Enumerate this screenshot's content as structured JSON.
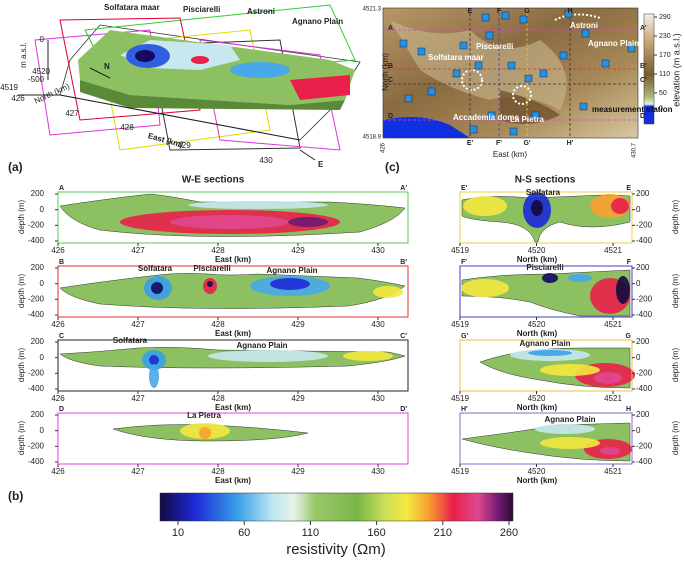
{
  "panel_labels": [
    "(a)",
    "(b)",
    "(c)"
  ],
  "block3d": {
    "labels": [
      "Solfatara maar",
      "Pisciarelli",
      "Astroni",
      "Agnano Plain"
    ],
    "z_label": "m a.s.l.",
    "z_ticks": [
      0,
      -500
    ],
    "north_label": "North (km)",
    "north_ticks": [
      4520,
      4519
    ],
    "east_label": "East (km)",
    "east_ticks": [
      426,
      427,
      428,
      429,
      430
    ],
    "arrow_n": "N",
    "arrow_e": "E"
  },
  "map": {
    "north_label": "North (km)",
    "east_label": "East (km)",
    "north_ticks": [
      4521.3,
      4518.9
    ],
    "east_ticks": [
      426,
      430.7
    ],
    "west_ends": [
      "A",
      "B",
      "C",
      "D"
    ],
    "east_ends": [
      "A'",
      "B'",
      "C'",
      "D'"
    ],
    "north_ends": [
      "E",
      "F",
      "G",
      "H"
    ],
    "south_ends": [
      "E'",
      "F'",
      "G'",
      "H'"
    ],
    "labels": [
      "Astroni",
      "Agnano Plain",
      "Pisciarelli",
      "Solfatara maar",
      "Accademia dome",
      "La Pietra",
      "measurement station"
    ],
    "elevation_ticks": [
      290,
      230,
      170,
      110,
      50,
      0
    ],
    "elevation_label": "elevation (m a.s.l.)"
  },
  "we_sections": {
    "title": "W-E sections",
    "depth_label": "depth (m)",
    "x_label": "East (km)",
    "depth_ticks": [
      200,
      0,
      -200,
      -400
    ],
    "x_ticks": [
      426,
      427,
      428,
      429,
      430
    ],
    "sections": [
      {
        "start": "A",
        "end": "A'",
        "labels": []
      },
      {
        "start": "B",
        "end": "B'",
        "labels": [
          "Solfatara",
          "Pisciarelli",
          "Agnano Plain"
        ]
      },
      {
        "start": "C",
        "end": "C'",
        "labels": [
          "Solfatara",
          "Agnano Plain"
        ]
      },
      {
        "start": "D",
        "end": "D'",
        "labels": [
          "La Pietra"
        ]
      }
    ]
  },
  "ns_sections": {
    "title": "N-S sections",
    "depth_label": "depth (m)",
    "x_label": "North (km)",
    "depth_ticks": [
      200,
      0,
      -200,
      -400
    ],
    "x_ticks": [
      4519,
      4520,
      4521
    ],
    "sections": [
      {
        "start": "E'",
        "end": "E",
        "labels": [
          "Solfatara"
        ]
      },
      {
        "start": "F'",
        "end": "F",
        "labels": [
          "Pisciarelli"
        ]
      },
      {
        "start": "G'",
        "end": "G",
        "labels": [
          "Agnano Plain"
        ]
      },
      {
        "start": "H'",
        "end": "H",
        "labels": [
          "Agnano Plain"
        ]
      }
    ]
  },
  "colorbar": {
    "ticks": [
      10,
      60,
      110,
      160,
      210,
      260
    ],
    "label": "resistivity (Ωm)"
  }
}
